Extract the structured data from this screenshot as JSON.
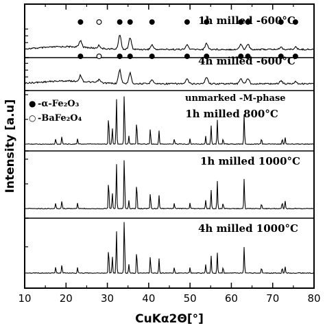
{
  "chart_data": {
    "type": "line",
    "xlabel": "CuKα2Θ[°]",
    "ylabel": "Intensity [a.u]",
    "xlim": [
      10,
      80
    ],
    "xticks": [
      "10",
      "20",
      "30",
      "40",
      "50",
      "60",
      "70",
      "80"
    ],
    "legend": [
      {
        "symbol": "●",
        "label": "-α-Fe₂O₃"
      },
      {
        "symbol": "○",
        "label": "-BaFe₂O₄"
      }
    ],
    "annotation": "unmarked -M-phase",
    "series": [
      {
        "name": "1h milled -600°C",
        "peaks": [
          [
            23.5,
            0.45
          ],
          [
            28.0,
            0.2
          ],
          [
            33.0,
            0.95
          ],
          [
            35.5,
            0.75
          ],
          [
            40.8,
            0.3
          ],
          [
            49.3,
            0.3
          ],
          [
            54.0,
            0.4
          ],
          [
            62.3,
            0.35
          ],
          [
            64.0,
            0.35
          ],
          [
            72.0,
            0.15
          ],
          [
            75.5,
            0.15
          ]
        ],
        "markers": [
          [
            23.5,
            "●"
          ],
          [
            28.0,
            "○"
          ],
          [
            33.0,
            "●"
          ],
          [
            35.5,
            "●"
          ],
          [
            40.8,
            "●"
          ],
          [
            49.3,
            "●"
          ],
          [
            54.0,
            "●"
          ],
          [
            62.3,
            "●"
          ],
          [
            64.0,
            "●"
          ],
          [
            72.0,
            "●"
          ],
          [
            75.5,
            "●"
          ]
        ]
      },
      {
        "name": "4h milled -600°C",
        "peaks": [
          [
            23.5,
            0.4
          ],
          [
            28.0,
            0.2
          ],
          [
            33.0,
            0.9
          ],
          [
            35.5,
            0.7
          ],
          [
            40.8,
            0.3
          ],
          [
            49.3,
            0.3
          ],
          [
            54.0,
            0.45
          ],
          [
            62.3,
            0.35
          ],
          [
            64.0,
            0.35
          ],
          [
            72.0,
            0.2
          ],
          [
            75.5,
            0.15
          ]
        ],
        "markers": [
          [
            23.5,
            "●"
          ],
          [
            28.0,
            "○"
          ],
          [
            33.0,
            "●"
          ],
          [
            35.5,
            "●"
          ],
          [
            40.8,
            "●"
          ],
          [
            49.3,
            "●"
          ],
          [
            54.0,
            "●"
          ],
          [
            62.3,
            "●"
          ],
          [
            64.0,
            "●"
          ],
          [
            72.0,
            "●"
          ],
          [
            75.5,
            "●"
          ]
        ]
      },
      {
        "name": "1h milled 800°C",
        "peaks": [
          [
            17.5,
            0.1
          ],
          [
            19.0,
            0.15
          ],
          [
            22.8,
            0.1
          ],
          [
            30.3,
            0.55
          ],
          [
            31.2,
            0.3
          ],
          [
            32.2,
            0.85
          ],
          [
            34.1,
            1.0
          ],
          [
            35.2,
            0.15
          ],
          [
            37.1,
            0.45
          ],
          [
            40.4,
            0.3
          ],
          [
            42.5,
            0.25
          ],
          [
            46.2,
            0.1
          ],
          [
            50.0,
            0.1
          ],
          [
            53.8,
            0.15
          ],
          [
            55.1,
            0.35
          ],
          [
            56.6,
            0.45
          ],
          [
            58.0,
            0.1
          ],
          [
            63.1,
            0.55
          ],
          [
            67.3,
            0.1
          ],
          [
            72.3,
            0.1
          ],
          [
            73.0,
            0.12
          ]
        ]
      },
      {
        "name": "1h milled 1000°C",
        "peaks": [
          [
            17.5,
            0.1
          ],
          [
            19.0,
            0.15
          ],
          [
            22.8,
            0.1
          ],
          [
            30.3,
            0.55
          ],
          [
            31.2,
            0.3
          ],
          [
            32.2,
            0.85
          ],
          [
            34.1,
            1.0
          ],
          [
            35.2,
            0.15
          ],
          [
            37.1,
            0.5
          ],
          [
            40.4,
            0.3
          ],
          [
            42.5,
            0.25
          ],
          [
            46.2,
            0.1
          ],
          [
            50.0,
            0.1
          ],
          [
            53.8,
            0.15
          ],
          [
            55.1,
            0.35
          ],
          [
            56.6,
            0.5
          ],
          [
            58.0,
            0.1
          ],
          [
            63.1,
            0.55
          ],
          [
            67.3,
            0.1
          ],
          [
            72.3,
            0.12
          ],
          [
            73.0,
            0.15
          ]
        ]
      },
      {
        "name": "4h milled 1000°C",
        "peaks": [
          [
            17.5,
            0.1
          ],
          [
            19.0,
            0.15
          ],
          [
            22.8,
            0.1
          ],
          [
            30.3,
            0.45
          ],
          [
            31.2,
            0.3
          ],
          [
            32.2,
            0.75
          ],
          [
            34.1,
            1.0
          ],
          [
            35.2,
            0.15
          ],
          [
            37.1,
            0.4
          ],
          [
            40.4,
            0.3
          ],
          [
            42.5,
            0.25
          ],
          [
            46.2,
            0.1
          ],
          [
            50.0,
            0.1
          ],
          [
            53.8,
            0.15
          ],
          [
            55.1,
            0.3
          ],
          [
            56.6,
            0.35
          ],
          [
            58.0,
            0.1
          ],
          [
            63.1,
            0.45
          ],
          [
            67.3,
            0.1
          ],
          [
            72.3,
            0.1
          ],
          [
            73.0,
            0.12
          ]
        ]
      }
    ]
  }
}
